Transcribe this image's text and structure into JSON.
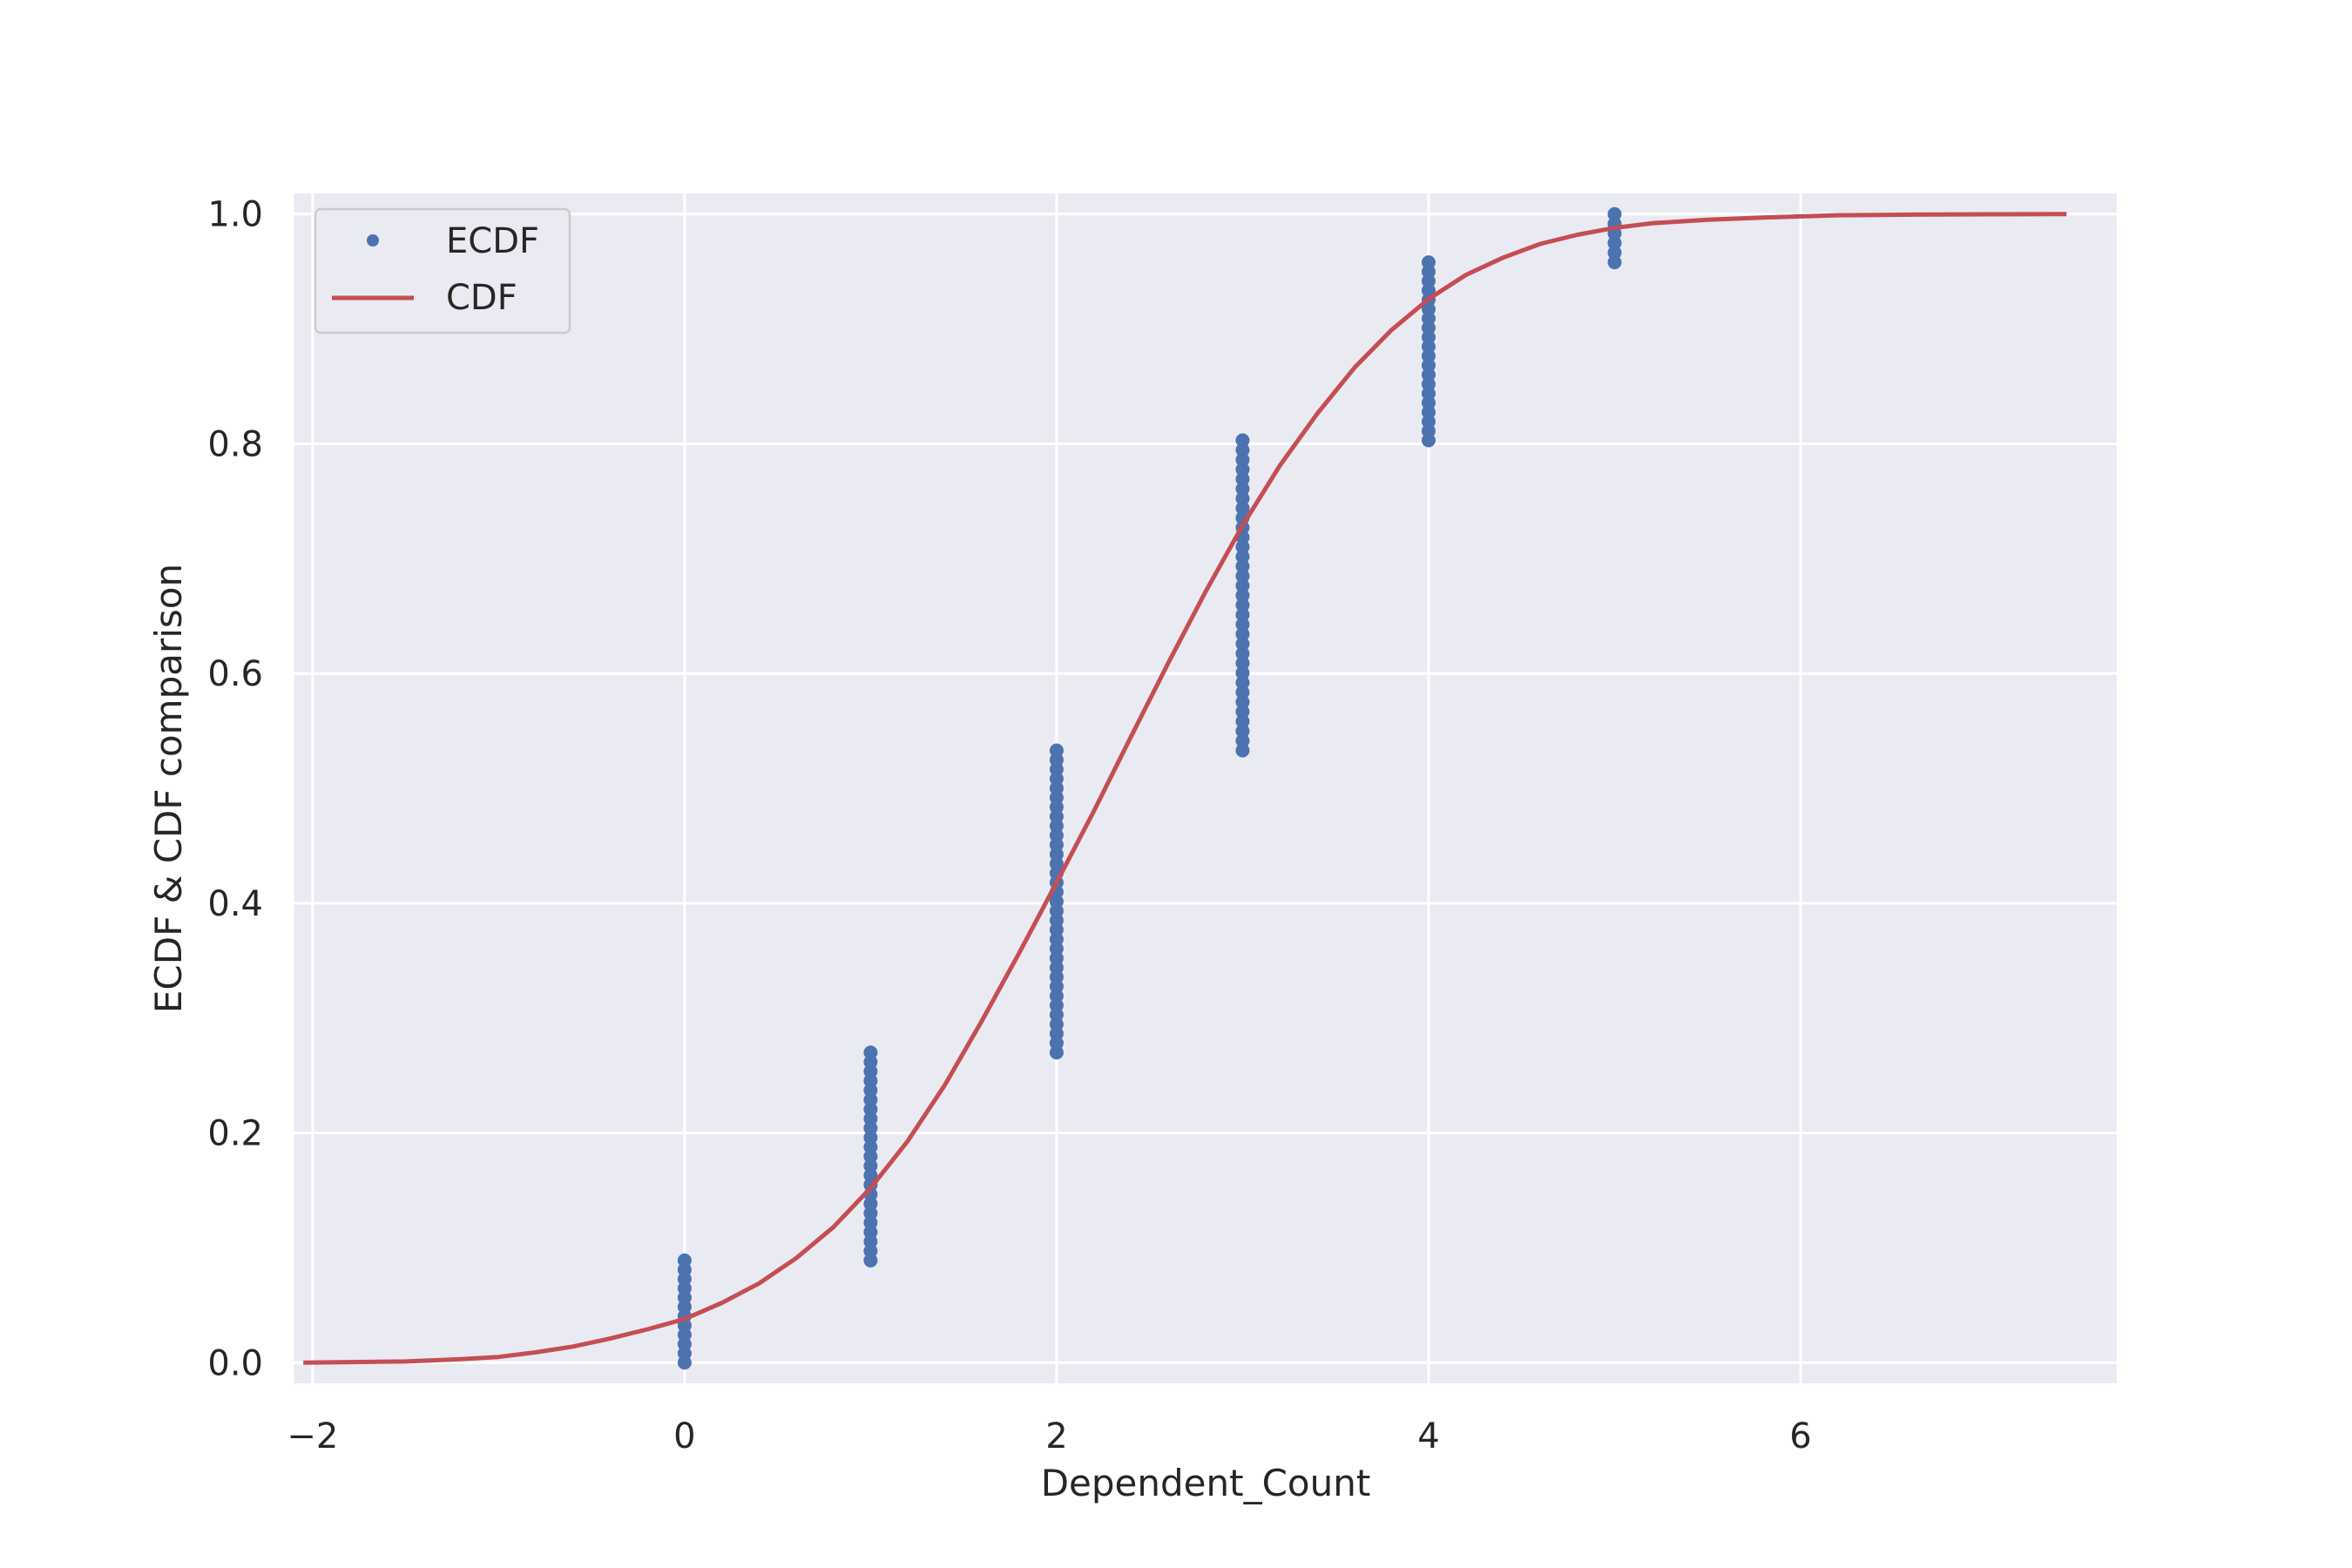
{
  "colors": {
    "plot_background": "#eaeaf2",
    "grid": "#ffffff",
    "ecdf": "#4c72b0",
    "cdf": "#c44e52",
    "text": "#262626"
  },
  "chart_data": {
    "type": "line",
    "xlabel": "Dependent_Count",
    "ylabel": "ECDF & CDF comparison",
    "xlim": [
      -2.1,
      7.7
    ],
    "ylim": [
      -0.018,
      1.018
    ],
    "xticks": [
      -2,
      0,
      2,
      4,
      6
    ],
    "xtick_labels": [
      "−2",
      "0",
      "2",
      "4",
      "6"
    ],
    "yticks": [
      0.0,
      0.2,
      0.4,
      0.6,
      0.8,
      1.0
    ],
    "ytick_labels": [
      "0.0",
      "0.2",
      "0.4",
      "0.6",
      "0.8",
      "1.0"
    ],
    "grid": true,
    "legend_position": "top-left",
    "series": [
      {
        "name": "ECDF",
        "style": "points",
        "color": "#4c72b0",
        "segments": [
          {
            "x": 0,
            "y_min": 0.0,
            "y_max": 0.089
          },
          {
            "x": 1,
            "y_min": 0.089,
            "y_max": 0.27
          },
          {
            "x": 2,
            "y_min": 0.27,
            "y_max": 0.533
          },
          {
            "x": 3,
            "y_min": 0.533,
            "y_max": 0.803
          },
          {
            "x": 4,
            "y_min": 0.803,
            "y_max": 0.958
          },
          {
            "x": 5,
            "y_min": 0.958,
            "y_max": 1.0
          }
        ]
      },
      {
        "name": "CDF",
        "style": "line",
        "color": "#c44e52",
        "x": [
          -2.05,
          -1.5,
          -1.2,
          -1.0,
          -0.8,
          -0.6,
          -0.4,
          -0.2,
          0.0,
          0.2,
          0.4,
          0.6,
          0.8,
          1.0,
          1.2,
          1.4,
          1.6,
          1.8,
          2.0,
          2.2,
          2.4,
          2.6,
          2.8,
          3.0,
          3.2,
          3.4,
          3.6,
          3.8,
          4.0,
          4.2,
          4.4,
          4.6,
          4.8,
          5.0,
          5.2,
          5.5,
          5.8,
          6.2,
          6.6,
          7.0,
          7.43
        ],
        "y": [
          0.0,
          0.001,
          0.003,
          0.005,
          0.009,
          0.014,
          0.021,
          0.029,
          0.038,
          0.052,
          0.069,
          0.091,
          0.118,
          0.152,
          0.193,
          0.242,
          0.298,
          0.357,
          0.418,
          0.48,
          0.545,
          0.609,
          0.671,
          0.729,
          0.781,
          0.826,
          0.866,
          0.899,
          0.926,
          0.947,
          0.962,
          0.974,
          0.982,
          0.988,
          0.992,
          0.995,
          0.997,
          0.999,
          0.9995,
          0.9998,
          1.0
        ]
      }
    ]
  }
}
